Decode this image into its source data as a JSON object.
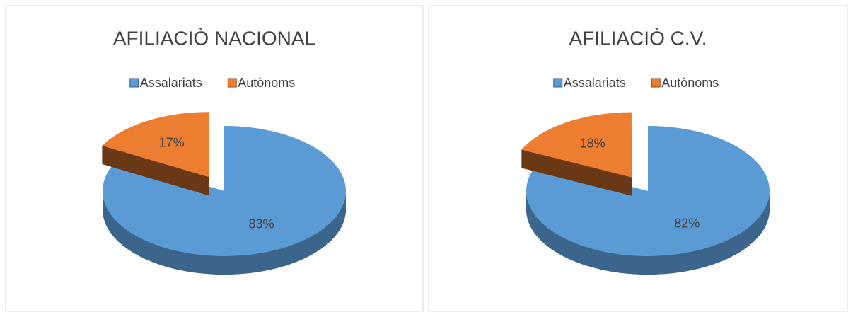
{
  "chart_data": [
    {
      "type": "pie",
      "title": "AFILIACIÒ NACIONAL",
      "categories": [
        "Assalariats",
        "Autònoms"
      ],
      "values": [
        83,
        17
      ],
      "value_labels": [
        "83%",
        "17%"
      ],
      "colors": [
        "#5b9bd5",
        "#ed7d31"
      ],
      "legend": "top"
    },
    {
      "type": "pie",
      "title": "AFILIACIÒ C.V.",
      "categories": [
        "Assalariats",
        "Autònoms"
      ],
      "values": [
        82,
        18
      ],
      "value_labels": [
        "82%",
        "18%"
      ],
      "colors": [
        "#5b9bd5",
        "#ed7d31"
      ],
      "legend": "top"
    }
  ]
}
